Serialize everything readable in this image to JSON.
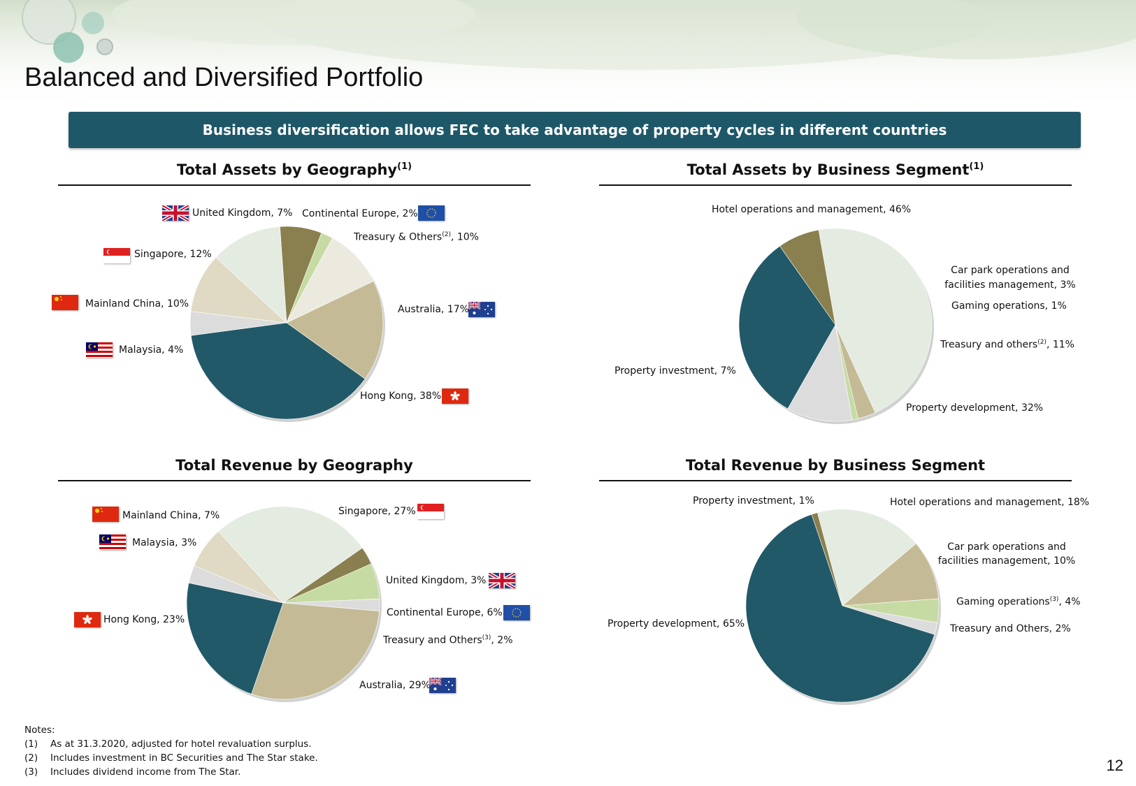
{
  "page": {
    "title": "Balanced and Diversified Portfolio",
    "banner": "Business diversification allows FEC to take advantage of property cycles in different countries",
    "page_number": "12"
  },
  "sections": {
    "assets_geo": {
      "title": "Total Assets by Geography",
      "sup": "(1)"
    },
    "assets_seg": {
      "title": "Total Assets by Business Segment",
      "sup": "(1)"
    },
    "revenue_geo": {
      "title": "Total Revenue by Geography",
      "sup": ""
    },
    "revenue_seg": {
      "title": "Total Revenue by Business Segment",
      "sup": ""
    }
  },
  "labels": {
    "ag_uk": "United Kingdom, 7%",
    "ag_ce": "Continental Europe, 2%",
    "ag_tr_a": "Treasury & Others",
    "ag_tr_sup": "(2)",
    "ag_tr_b": ", 10%",
    "ag_sg": "Singapore, 12%",
    "ag_cn": "Mainland China, 10%",
    "ag_au": "Australia, 17%",
    "ag_my": "Malaysia, 4%",
    "ag_hk": "Hong Kong, 38%",
    "as_hotel": "Hotel operations and management, 46%",
    "as_car": "Car park operations and facilities management, 3%",
    "as_gaming": "Gaming operations, 1%",
    "as_tr_a": "Treasury and others",
    "as_tr_sup": "(2)",
    "as_tr_b": ", 11%",
    "as_pi": "Property investment, 7%",
    "as_pd": "Property development, 32%",
    "rg_cn": "Mainland China, 7%",
    "rg_sg": "Singapore, 27%",
    "rg_my": "Malaysia, 3%",
    "rg_uk": "United Kingdom, 3%",
    "rg_ce": "Continental Europe, 6%",
    "rg_hk": "Hong Kong, 23%",
    "rg_tr_a": "Treasury and Others",
    "rg_tr_sup": "(3)",
    "rg_tr_b": ", 2%",
    "rg_au": "Australia, 29%",
    "rs_pi": "Property investment, 1%",
    "rs_hotel": "Hotel operations and management, 18%",
    "rs_car": "Car park operations and facilities management, 10%",
    "rs_gaming_a": "Gaming operations",
    "rs_gaming_sup": "(3)",
    "rs_gaming_b": ", 4%",
    "rs_tr": "Treasury and Others, 2%",
    "rs_pd": "Property development, 65%"
  },
  "notes": {
    "heading": "Notes:",
    "items": [
      {
        "num": "(1)",
        "text": "As at 31.3.2020, adjusted for hotel revaluation surplus."
      },
      {
        "num": "(2)",
        "text": "Includes investment in BC Securities and The Star stake."
      },
      {
        "num": "(3)",
        "text": "Includes dividend income from The Star."
      }
    ]
  },
  "colors": {
    "dark_teal": "#215968",
    "light_green_grey": "#e4ebe1",
    "tan": "#c4bb96",
    "olive": "#8a7f4e",
    "light_green": "#c6dba4",
    "beige": "#e0d9c3",
    "light_grey": "#dcdcdc",
    "cream": "#eceadf",
    "banner": "#1e5868"
  },
  "chart_data": [
    {
      "type": "pie",
      "title": "Total Assets by Geography",
      "categories": [
        "United Kingdom",
        "Continental Europe",
        "Treasury & Others",
        "Australia",
        "Hong Kong",
        "Malaysia",
        "Mainland China",
        "Singapore"
      ],
      "values": [
        7,
        2,
        10,
        17,
        38,
        4,
        10,
        12
      ],
      "colors": [
        "#8a7f4e",
        "#c6dba4",
        "#eceadf",
        "#c4bb96",
        "#215968",
        "#dcdcdc",
        "#e0d9c3",
        "#e4ebe1"
      ]
    },
    {
      "type": "pie",
      "title": "Total Assets by Business Segment",
      "categories": [
        "Hotel operations and management",
        "Car park operations and facilities management",
        "Gaming operations",
        "Treasury and others",
        "Property development",
        "Property investment"
      ],
      "values": [
        46,
        3,
        1,
        11,
        32,
        7
      ],
      "colors": [
        "#e4ebe1",
        "#c4bb96",
        "#c6dba4",
        "#dcdcdc",
        "#215968",
        "#8a7f4e"
      ]
    },
    {
      "type": "pie",
      "title": "Total Revenue by Geography",
      "categories": [
        "Singapore",
        "United Kingdom",
        "Continental Europe",
        "Treasury and Others",
        "Australia",
        "Hong Kong",
        "Malaysia",
        "Mainland China"
      ],
      "values": [
        27,
        3,
        6,
        2,
        29,
        23,
        3,
        7
      ],
      "colors": [
        "#e4ebe1",
        "#8a7f4e",
        "#c6dba4",
        "#dcdcdc",
        "#c4bb96",
        "#215968",
        "#dcdcdc",
        "#e0d9c3"
      ]
    },
    {
      "type": "pie",
      "title": "Total Revenue by Business Segment",
      "categories": [
        "Hotel operations and management",
        "Car park operations and facilities management",
        "Gaming operations",
        "Treasury and Others",
        "Property development",
        "Property investment"
      ],
      "values": [
        18,
        10,
        4,
        2,
        65,
        1
      ],
      "colors": [
        "#e4ebe1",
        "#c4bb96",
        "#c6dba4",
        "#dcdcdc",
        "#215968",
        "#8a7f4e"
      ]
    }
  ]
}
